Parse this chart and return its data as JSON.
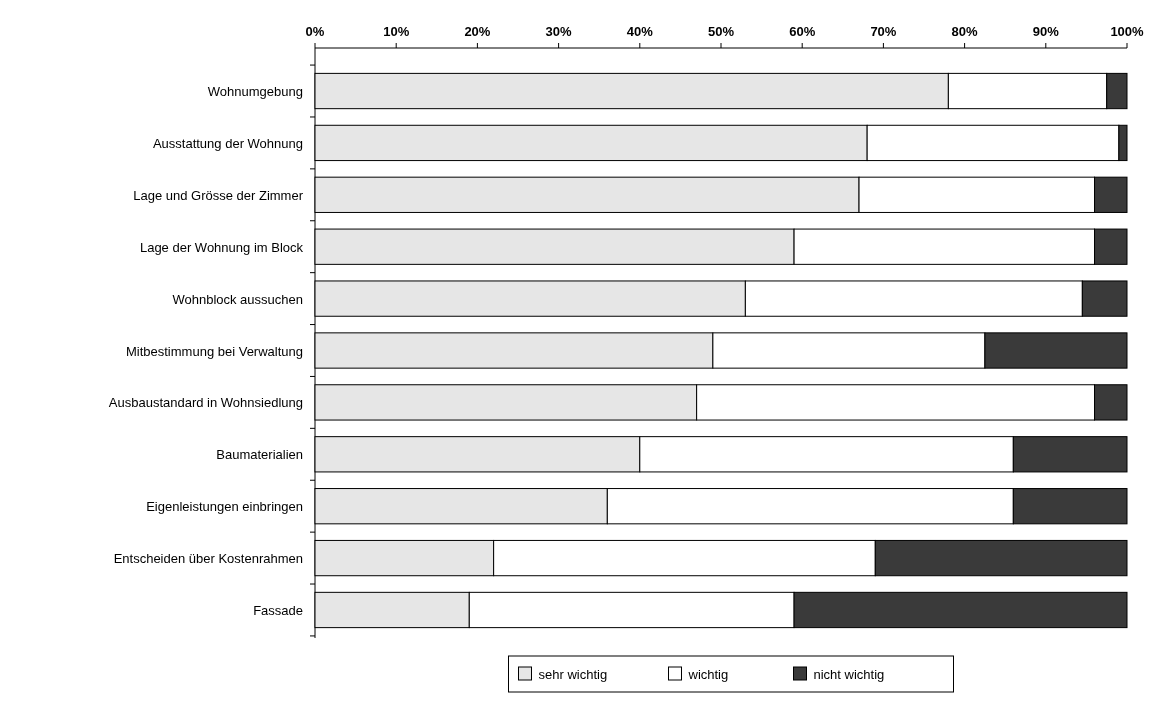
{
  "chart_data": {
    "type": "bar",
    "orientation": "horizontal",
    "stacked": true,
    "categories": [
      "Wohnumgebung",
      "Ausstattung der Wohnung",
      "Lage und Grösse der Zimmer",
      "Lage der Wohnung im Block",
      "Wohnblock aussuchen",
      "Mitbestimmung bei Verwaltung",
      "Ausbaustandard in Wohnsiedlung",
      "Baumaterialien",
      "Eigenleistungen einbringen",
      "Entscheiden über Kostenrahmen",
      "Fassade"
    ],
    "series": [
      {
        "name": "sehr wichtig",
        "color": "#e6e6e6",
        "values": [
          78,
          68,
          67,
          59,
          53,
          49,
          47,
          40,
          36,
          22,
          19
        ]
      },
      {
        "name": "wichtig",
        "color": "#ffffff",
        "values": [
          19.5,
          31,
          29,
          37,
          41.5,
          33.5,
          49,
          46,
          50,
          47,
          40
        ]
      },
      {
        "name": "nicht wichtig",
        "color": "#3a3a3a",
        "values": [
          2.5,
          1,
          4,
          4,
          5.5,
          17.5,
          4,
          14,
          14,
          31,
          41
        ]
      }
    ],
    "xlim": [
      0,
      100
    ],
    "xticks": [
      {
        "value": 0,
        "label": "0%"
      },
      {
        "value": 10,
        "label": "10%"
      },
      {
        "value": 20,
        "label": "20%"
      },
      {
        "value": 30,
        "label": "30%"
      },
      {
        "value": 40,
        "label": "40%"
      },
      {
        "value": 50,
        "label": "50%"
      },
      {
        "value": 60,
        "label": "60%"
      },
      {
        "value": 70,
        "label": "70%"
      },
      {
        "value": 80,
        "label": "80%"
      },
      {
        "value": 90,
        "label": "90%"
      },
      {
        "value": 100,
        "label": "100%"
      }
    ],
    "grid": false,
    "legend": "bottom"
  }
}
